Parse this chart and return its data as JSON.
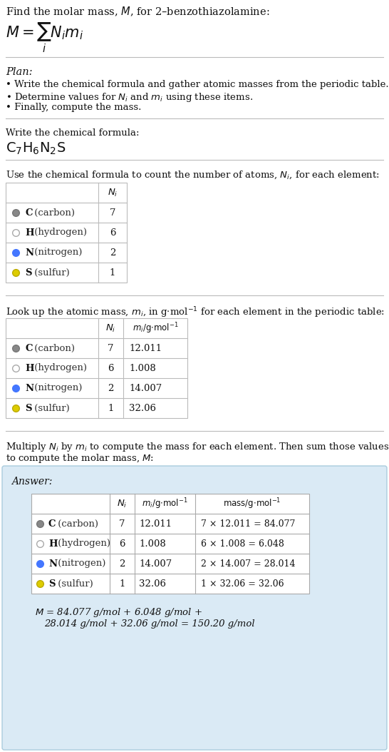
{
  "bg_color": "#ffffff",
  "answer_bg_color": "#ddeeff",
  "answer_border_color": "#aaccee",
  "elements": [
    "C",
    "H",
    "N",
    "S"
  ],
  "element_names": [
    "carbon",
    "hydrogen",
    "nitrogen",
    "sulfur"
  ],
  "dot_colors": [
    "#888888",
    "#ffffff",
    "#4477ff",
    "#ddcc00"
  ],
  "dot_edge_colors": [
    "#777777",
    "#aaaaaa",
    "#4477ff",
    "#bbaa00"
  ],
  "Ni": [
    7,
    6,
    2,
    1
  ],
  "mi": [
    "12.011",
    "1.008",
    "14.007",
    "32.06"
  ],
  "mass_strs": [
    "7 × 12.011 = 84.077",
    "6 × 1.008 = 6.048",
    "2 × 14.007 = 28.014",
    "1 × 32.06 = 32.06"
  ],
  "final_eq_line1": "M = 84.077 g/mol + 6.048 g/mol +",
  "final_eq_line2": "28.014 g/mol + 32.06 g/mol = 150.20 g/mol"
}
